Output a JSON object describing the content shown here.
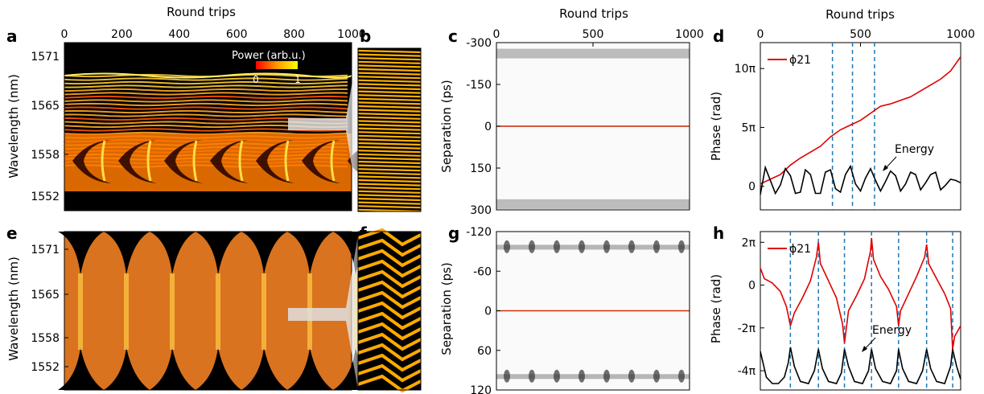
{
  "figure": {
    "top_axis_title": "Round trips",
    "colorbar_label": "Power (arb.u.)",
    "colorbar_ticks": [
      "0",
      "1"
    ],
    "colors": {
      "hot_low": "#000000",
      "hot_mid": "#ff3300",
      "hot_high": "#ffff00",
      "phase_line": "#e00000",
      "energy_line": "#000000",
      "marker_line": "#1f77b4"
    }
  },
  "chart_data": [
    {
      "panel": "a",
      "type": "heatmap",
      "colormap": "hot",
      "xlabel": "Round trips",
      "xticks": [
        0,
        200,
        400,
        600,
        800,
        1000
      ],
      "xlim": [
        0,
        1000
      ],
      "ylabel": "Wavelength (nm)",
      "yticks": [
        1571,
        1565,
        1558,
        1552
      ]
    },
    {
      "panel": "b",
      "type": "heatmap",
      "colormap": "hot"
    },
    {
      "panel": "c",
      "type": "heatmap",
      "colormap": "gray",
      "xlabel": "Round trips",
      "xticks": [
        0,
        500,
        1000
      ],
      "xlim": [
        0,
        1000
      ],
      "ylabel": "Separation (ps)",
      "yticks": [
        -300,
        -150,
        0,
        150,
        300
      ],
      "ylim": [
        -300,
        300
      ]
    },
    {
      "panel": "d",
      "type": "line",
      "xlabel": "Round trips",
      "xticks": [
        0,
        500,
        1000
      ],
      "xlim": [
        0,
        1000
      ],
      "ylabel": "Phase (rad)",
      "ytick_labels": [
        "0",
        "5π",
        "10π"
      ],
      "legend": "ϕ21",
      "annotation": "Energy",
      "markers_x": [
        360,
        460,
        570
      ],
      "series": [
        {
          "name": "ϕ21",
          "x": [
            0,
            50,
            100,
            150,
            200,
            250,
            300,
            350,
            400,
            450,
            500,
            550,
            600,
            650,
            700,
            750,
            800,
            850,
            900,
            950,
            1000
          ],
          "y": [
            0.2,
            0.6,
            1.0,
            1.8,
            2.4,
            2.9,
            3.4,
            4.2,
            4.8,
            5.2,
            5.6,
            6.2,
            6.8,
            7.0,
            7.3,
            7.6,
            8.1,
            8.6,
            9.1,
            9.8,
            11.0
          ]
        },
        {
          "name": "Energy",
          "x": [
            0,
            25,
            50,
            75,
            100,
            125,
            150,
            175,
            200,
            225,
            250,
            275,
            300,
            325,
            350,
            375,
            400,
            425,
            450,
            475,
            500,
            525,
            550,
            575,
            600,
            625,
            650,
            675,
            700,
            725,
            750,
            775,
            800,
            825,
            850,
            875,
            900,
            925,
            950,
            975,
            1000
          ],
          "y": [
            -0.7,
            1.6,
            0.5,
            -0.6,
            0.1,
            1.5,
            0.9,
            -0.6,
            -0.5,
            1.4,
            1.0,
            -0.6,
            -0.6,
            1.2,
            1.4,
            -0.2,
            -0.5,
            1.0,
            1.7,
            0.2,
            -0.4,
            0.7,
            1.5,
            0.5,
            -0.4,
            0.4,
            1.3,
            0.9,
            -0.4,
            0.2,
            1.2,
            1.0,
            -0.3,
            0.3,
            1.0,
            1.2,
            -0.3,
            0.1,
            0.6,
            0.5,
            0.3
          ]
        }
      ]
    },
    {
      "panel": "e",
      "type": "heatmap",
      "colormap": "hot",
      "ylabel": "Wavelength (nm)",
      "yticks": [
        1571,
        1565,
        1558,
        1552
      ]
    },
    {
      "panel": "f",
      "type": "heatmap",
      "colormap": "hot"
    },
    {
      "panel": "g",
      "type": "heatmap",
      "colormap": "gray",
      "ylabel": "Separation (ps)",
      "yticks": [
        -120,
        -60,
        0,
        60,
        120
      ],
      "ylim": [
        -120,
        120
      ]
    },
    {
      "panel": "h",
      "type": "line",
      "ylabel": "Phase (rad)",
      "ytick_labels": [
        "-4π",
        "-2π",
        "0",
        "2π"
      ],
      "legend": "ϕ21",
      "annotation": "Energy",
      "markers_x": [
        150,
        290,
        420,
        555,
        690,
        830,
        960
      ],
      "series": [
        {
          "name": "ϕ21",
          "x": [
            0,
            20,
            60,
            100,
            130,
            150,
            170,
            210,
            250,
            280,
            290,
            300,
            340,
            380,
            410,
            420,
            440,
            480,
            520,
            550,
            555,
            565,
            600,
            640,
            680,
            690,
            700,
            740,
            780,
            820,
            830,
            840,
            880,
            920,
            950,
            960,
            970,
            1000
          ],
          "y": [
            0.8,
            0.3,
            0.1,
            -0.3,
            -1.0,
            -1.9,
            -1.3,
            -0.6,
            0.2,
            1.3,
            2.0,
            1.0,
            0.2,
            -0.6,
            -1.8,
            -2.7,
            -1.2,
            -0.5,
            0.3,
            1.6,
            2.2,
            1.2,
            0.4,
            -0.2,
            -1.0,
            -1.9,
            -1.2,
            -0.4,
            0.4,
            1.3,
            1.9,
            1.0,
            0.3,
            -0.4,
            -1.1,
            -3.0,
            -2.4,
            -1.9
          ]
        },
        {
          "name": "Energy",
          "x": [
            0,
            30,
            60,
            90,
            120,
            140,
            150,
            170,
            200,
            240,
            270,
            290,
            310,
            340,
            380,
            405,
            420,
            440,
            470,
            510,
            540,
            555,
            575,
            610,
            650,
            680,
            690,
            710,
            740,
            780,
            810,
            830,
            850,
            880,
            920,
            950,
            960,
            980,
            1000
          ],
          "y": [
            -3.1,
            -4.3,
            -4.6,
            -4.6,
            -4.3,
            -3.6,
            -2.9,
            -3.8,
            -4.5,
            -4.6,
            -4.0,
            -3.0,
            -3.9,
            -4.5,
            -4.6,
            -4.1,
            -3.0,
            -3.8,
            -4.5,
            -4.6,
            -4.0,
            -3.0,
            -3.9,
            -4.5,
            -4.6,
            -4.0,
            -3.0,
            -3.9,
            -4.5,
            -4.6,
            -4.0,
            -3.0,
            -3.9,
            -4.5,
            -4.6,
            -3.8,
            -3.0,
            -3.8,
            -4.4
          ]
        }
      ]
    }
  ]
}
